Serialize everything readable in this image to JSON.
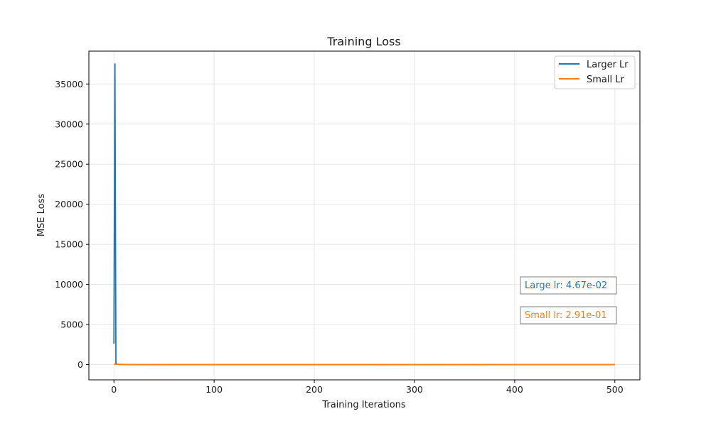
{
  "chart_data": {
    "type": "line",
    "title": "Training Loss",
    "xlabel": "Training Iterations",
    "ylabel": "MSE Loss",
    "xlim": [
      -25,
      525
    ],
    "ylim": [
      -1900,
      39100
    ],
    "xticks": [
      0,
      100,
      200,
      300,
      400,
      500
    ],
    "yticks": [
      0,
      5000,
      10000,
      15000,
      20000,
      25000,
      30000,
      35000
    ],
    "grid": true,
    "legend_position": "top-right",
    "series": [
      {
        "name": "Larger Lr",
        "color": "#1f77b4",
        "x": [
          0,
          1,
          2,
          3,
          5,
          10,
          20,
          50,
          100,
          200,
          300,
          400,
          500
        ],
        "y": [
          2600,
          37500,
          160,
          60,
          30,
          15,
          8,
          4,
          2,
          1,
          0.5,
          0.2,
          0.05
        ]
      },
      {
        "name": "Small Lr",
        "color": "#ff7f0e",
        "x": [
          0,
          1,
          2,
          5,
          10,
          20,
          50,
          100,
          200,
          300,
          400,
          500
        ],
        "y": [
          80,
          60,
          45,
          30,
          20,
          12,
          6,
          3,
          1.5,
          0.8,
          0.5,
          0.3
        ]
      }
    ],
    "annotations": [
      {
        "text": "Large lr: 4.67e-02",
        "color": "#1f77b4"
      },
      {
        "text": "Small lr: 2.91e-01",
        "color": "#ff7f0e"
      }
    ]
  }
}
